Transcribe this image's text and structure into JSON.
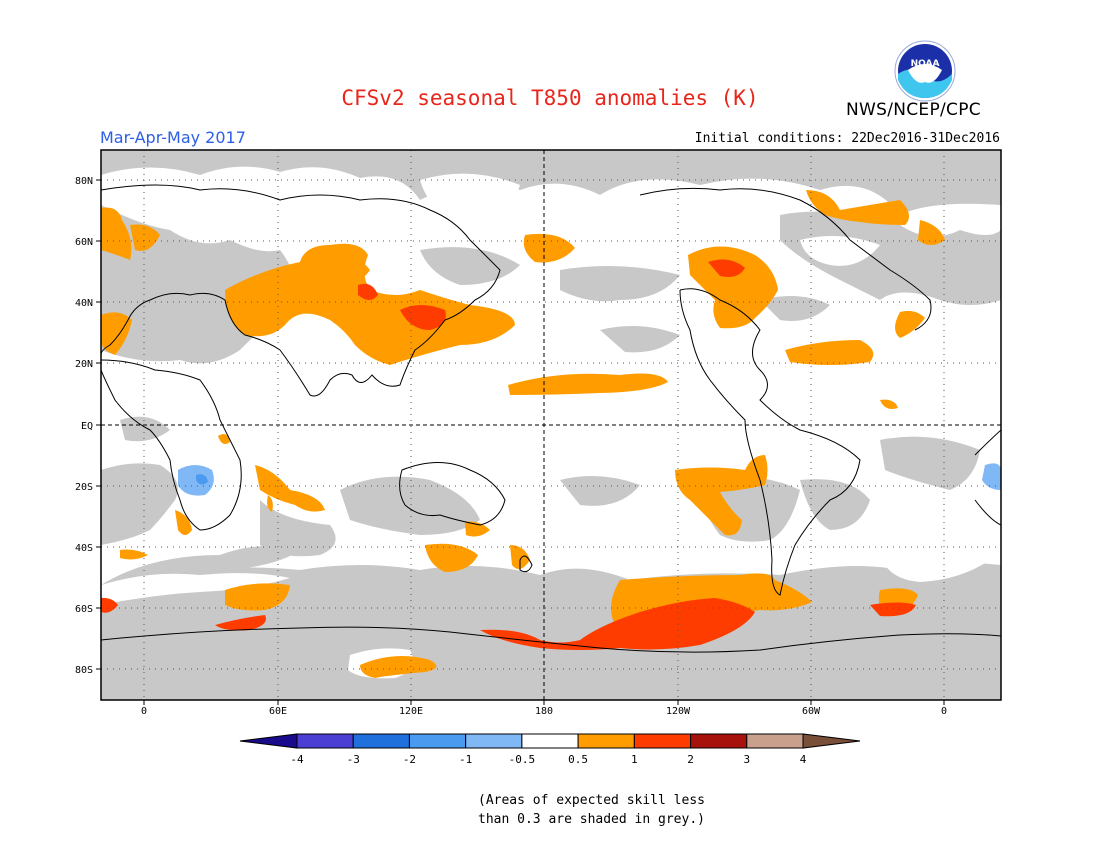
{
  "title": "CFSv2 seasonal T850 anomalies (K)",
  "organization": "NWS/NCEP/CPC",
  "logo_text": "NOAA",
  "season": "Mar-Apr-May 2017",
  "initial_conditions": "Initial conditions: 22Dec2016-31Dec2016",
  "colors": {
    "title": "#e8251b",
    "season": "#2a5fe6",
    "skill_grey": "#c8c8c8",
    "warm_05": "#ff9d00",
    "warm_1": "#ff3c00",
    "warm_2": "#c81e14",
    "cold_05": "#7fb8f5",
    "cold_1": "#4a9bf0"
  },
  "map": {
    "lat_labels": [
      "80N",
      "60N",
      "40N",
      "20N",
      "EQ",
      "20S",
      "40S",
      "60S",
      "80S"
    ],
    "lon_labels": [
      "0",
      "60E",
      "120E",
      "180",
      "120W",
      "60W",
      "0"
    ]
  },
  "legend": {
    "colors": [
      "#1a0a8c",
      "#4a3fd2",
      "#1f6fdc",
      "#4a9bf0",
      "#7fb8f5",
      "#ffffff",
      "#ff9d00",
      "#ff3c00",
      "#a8120c",
      "#c9a08c",
      "#7a4f3a"
    ],
    "labels": [
      "-4",
      "-3",
      "-2",
      "-1",
      "-0.5",
      "0.5",
      "1",
      "2",
      "3",
      "4"
    ]
  },
  "note": [
    "(Areas of expected skill less",
    "than 0.3 are shaded in grey.)"
  ]
}
